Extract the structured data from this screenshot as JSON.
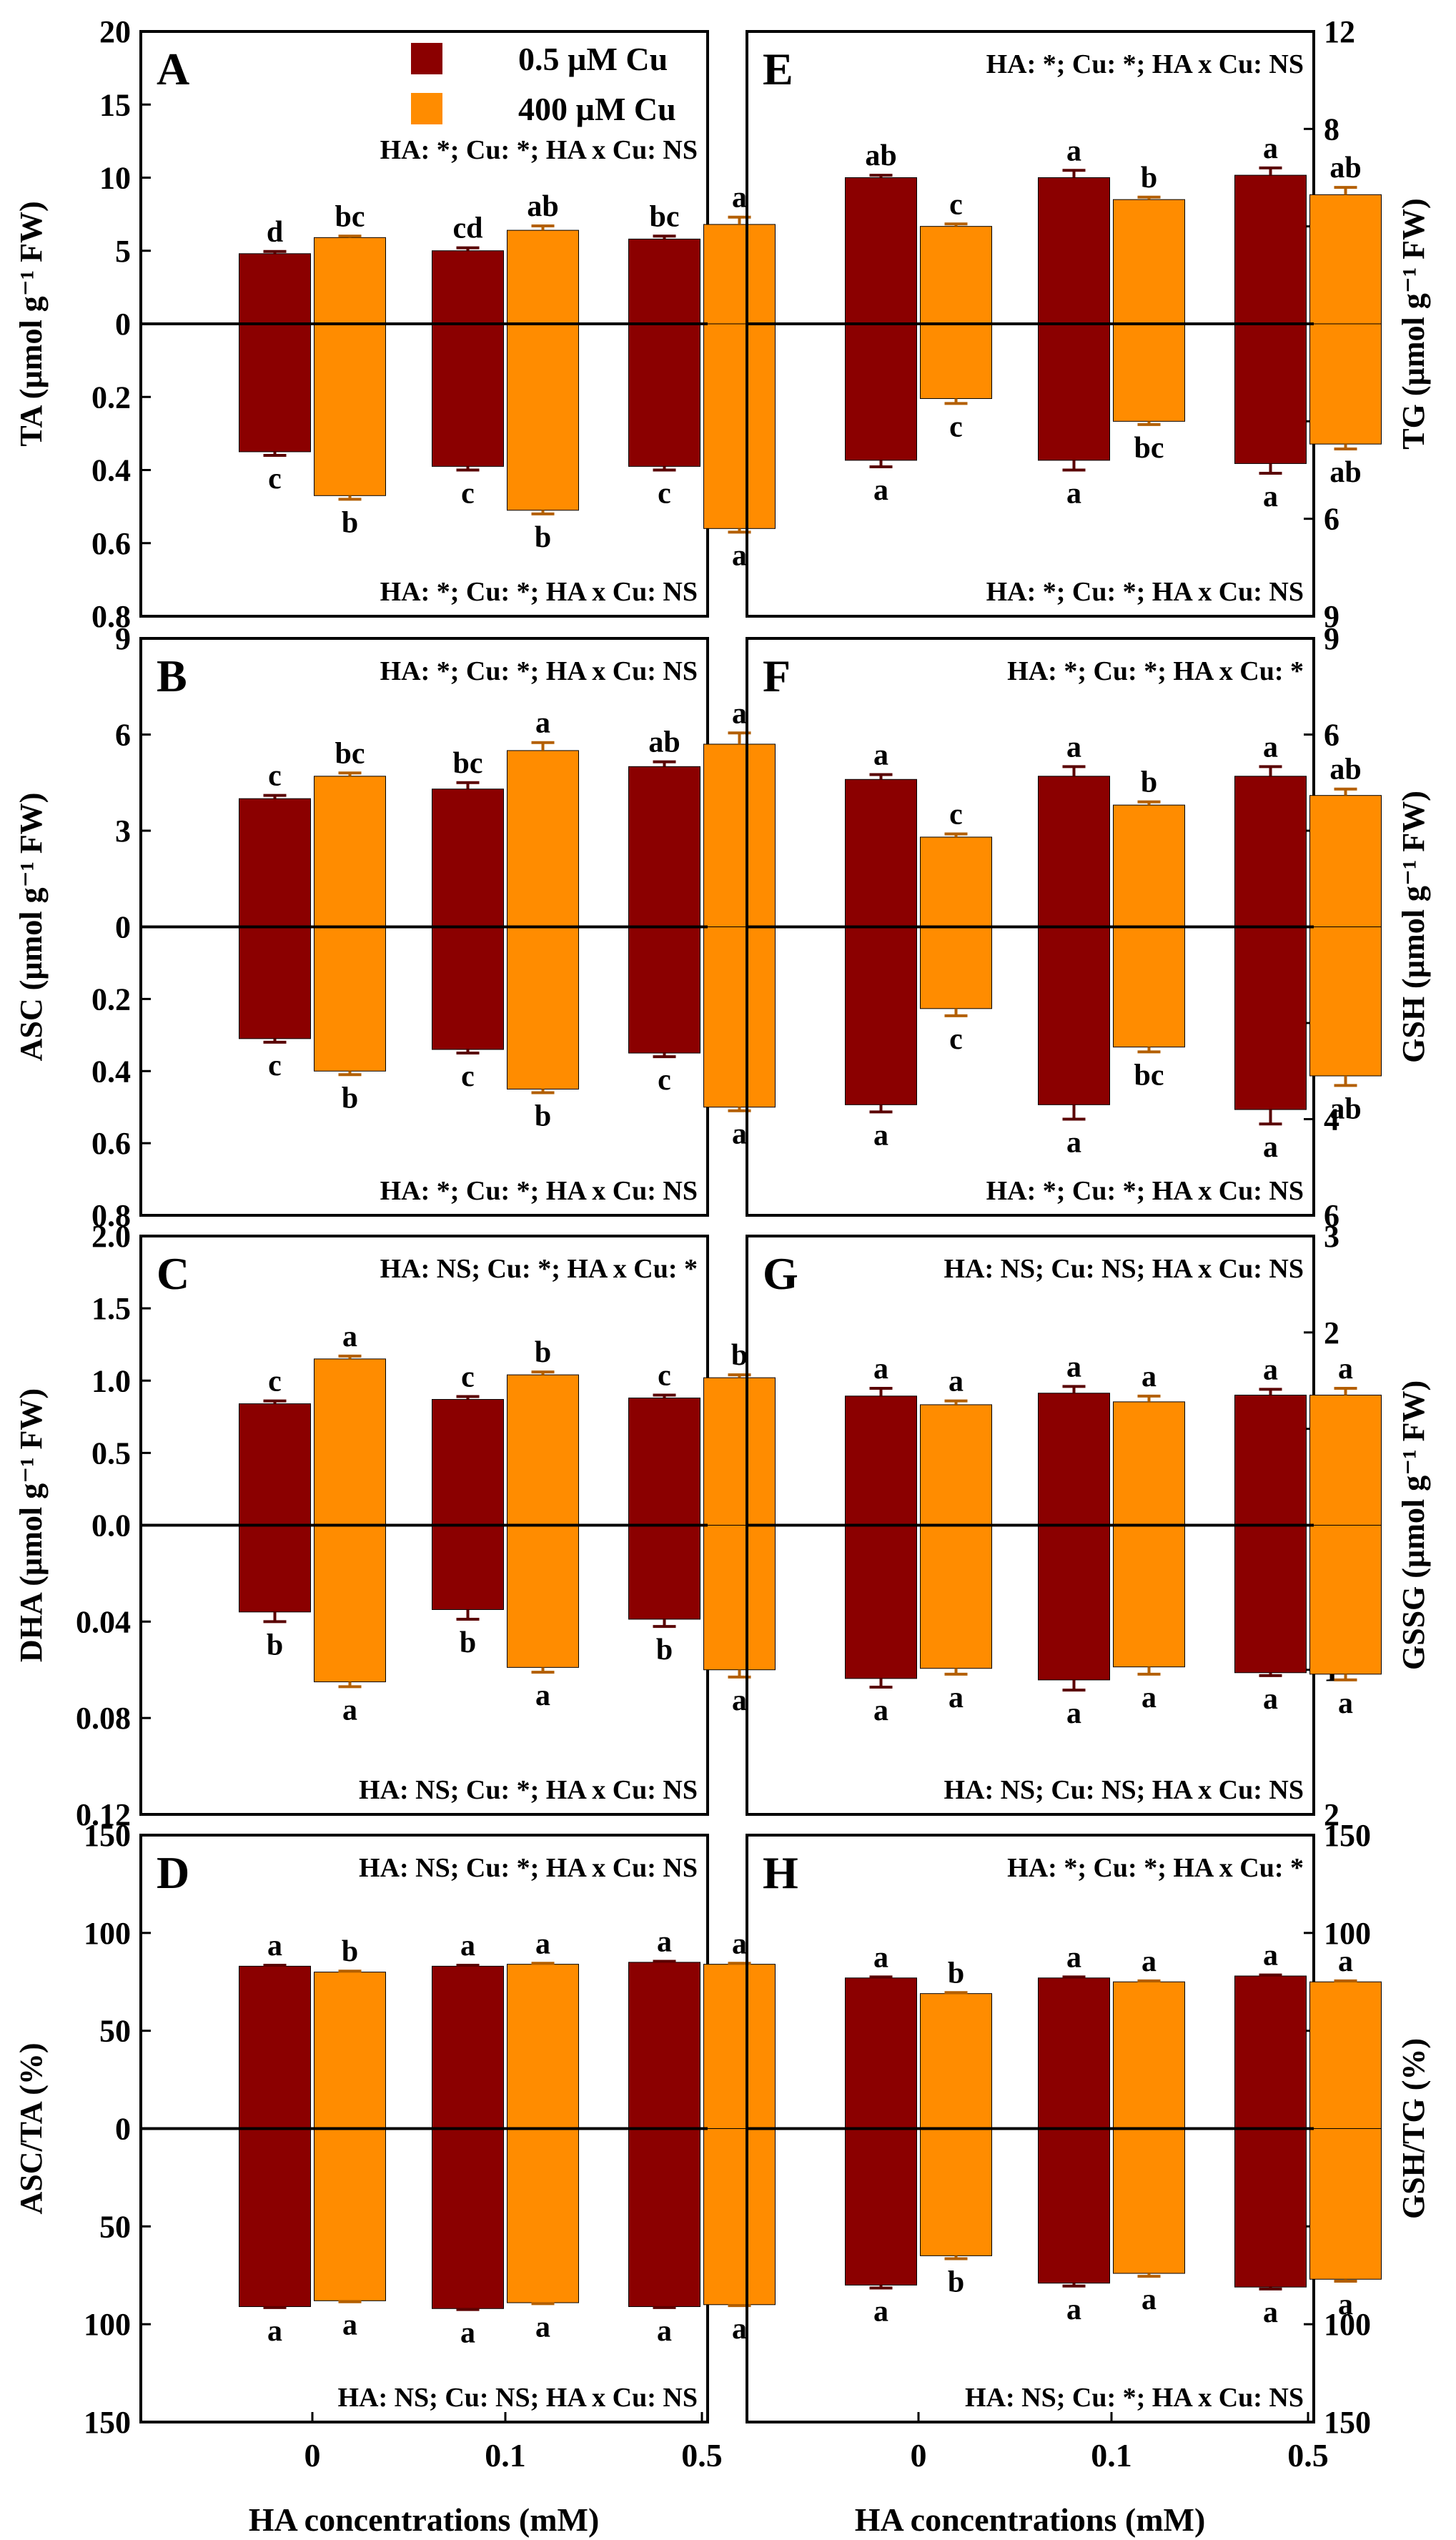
{
  "figure": {
    "xlabel": "HA concentrations (mM)",
    "categories": [
      "0",
      "0.1",
      "0.5"
    ],
    "legend": [
      {
        "label": "0.5 µM Cu",
        "color": "#8b0000"
      },
      {
        "label": "400 µM Cu",
        "color": "#ff8c00"
      }
    ]
  },
  "chart_data": [
    {
      "id": "A",
      "type": "bar",
      "panel_label": "A",
      "ylabel": "TA (µmol g⁻¹ FW)",
      "top": {
        "ylim": [
          0,
          20
        ],
        "ticks": [
          0,
          5,
          10,
          15,
          20
        ],
        "stats": "HA: *; Cu: *; HA x Cu: NS",
        "series": [
          {
            "name": "0.5 µM Cu",
            "values": [
              4.8,
              5.0,
              5.8
            ],
            "errors": [
              0.15,
              0.2,
              0.2
            ],
            "letters": [
              "d",
              "cd",
              "bc"
            ]
          },
          {
            "name": "400 µM Cu",
            "values": [
              5.9,
              6.4,
              6.8
            ],
            "errors": [
              0.1,
              0.3,
              0.5
            ],
            "letters": [
              "bc",
              "ab",
              "a"
            ]
          }
        ]
      },
      "bottom": {
        "ylim": [
          0,
          0.8
        ],
        "ticks": [
          0,
          0.2,
          0.4,
          0.6,
          0.8
        ],
        "tick_labels": [
          "0",
          "0.2",
          "0.4",
          "0.6",
          "0.8"
        ],
        "stats": "HA: *; Cu: *; HA x Cu: NS",
        "series": [
          {
            "name": "0.5 µM Cu",
            "values": [
              0.35,
              0.39,
              0.39
            ],
            "errors": [
              0.01,
              0.01,
              0.01
            ],
            "letters": [
              "c",
              "c",
              "c"
            ]
          },
          {
            "name": "400 µM Cu",
            "values": [
              0.47,
              0.51,
              0.56
            ],
            "errors": [
              0.01,
              0.01,
              0.01
            ],
            "letters": [
              "b",
              "b",
              "a"
            ]
          }
        ]
      }
    },
    {
      "id": "B",
      "type": "bar",
      "panel_label": "B",
      "ylabel": "ASC (µmol g⁻¹ FW)",
      "top": {
        "ylim": [
          0,
          9
        ],
        "ticks": [
          0,
          3,
          6,
          9
        ],
        "stats": "HA: *; Cu: *; HA x Cu: NS",
        "series": [
          {
            "name": "0.5 µM Cu",
            "values": [
              4.0,
              4.3,
              5.0
            ],
            "errors": [
              0.1,
              0.2,
              0.15
            ],
            "letters": [
              "c",
              "bc",
              "ab"
            ]
          },
          {
            "name": "400 µM Cu",
            "values": [
              4.7,
              5.5,
              5.7
            ],
            "errors": [
              0.1,
              0.25,
              0.35
            ],
            "letters": [
              "bc",
              "a",
              "a"
            ]
          }
        ]
      },
      "bottom": {
        "ylim": [
          0,
          0.8
        ],
        "ticks": [
          0,
          0.2,
          0.4,
          0.6,
          0.8
        ],
        "tick_labels": [
          "0",
          "0.2",
          "0.4",
          "0.6",
          "0.8"
        ],
        "stats": "HA: *; Cu: *; HA x Cu: NS",
        "series": [
          {
            "name": "0.5 µM Cu",
            "values": [
              0.31,
              0.34,
              0.35
            ],
            "errors": [
              0.01,
              0.01,
              0.01
            ],
            "letters": [
              "c",
              "c",
              "c"
            ]
          },
          {
            "name": "400 µM Cu",
            "values": [
              0.4,
              0.45,
              0.5
            ],
            "errors": [
              0.01,
              0.01,
              0.01
            ],
            "letters": [
              "b",
              "b",
              "a"
            ]
          }
        ]
      }
    },
    {
      "id": "C",
      "type": "bar",
      "panel_label": "C",
      "ylabel": "DHA (µmol g⁻¹ FW)",
      "top": {
        "ylim": [
          0,
          2.0
        ],
        "ticks": [
          0,
          0.5,
          1.0,
          1.5,
          2.0
        ],
        "tick_labels": [
          "0.0",
          "0.5",
          "1.0",
          "1.5",
          "2.0"
        ],
        "stats": "HA: NS; Cu: *; HA x Cu: *",
        "series": [
          {
            "name": "0.5 µM Cu",
            "values": [
              0.84,
              0.87,
              0.88
            ],
            "errors": [
              0.02,
              0.02,
              0.02
            ],
            "letters": [
              "c",
              "c",
              "c"
            ]
          },
          {
            "name": "400 µM Cu",
            "values": [
              1.15,
              1.04,
              1.02
            ],
            "errors": [
              0.02,
              0.02,
              0.02
            ],
            "letters": [
              "a",
              "b",
              "b"
            ]
          }
        ]
      },
      "bottom": {
        "ylim": [
          0,
          0.12
        ],
        "ticks": [
          0,
          0.04,
          0.08,
          0.12
        ],
        "tick_labels": [
          "",
          "0.04",
          "0.08",
          "0.12"
        ],
        "stats": "HA: NS; Cu: *; HA x Cu: NS",
        "series": [
          {
            "name": "0.5 µM Cu",
            "values": [
              0.036,
              0.035,
              0.039
            ],
            "errors": [
              0.004,
              0.004,
              0.003
            ],
            "letters": [
              "b",
              "b",
              "b"
            ]
          },
          {
            "name": "400 µM Cu",
            "values": [
              0.065,
              0.059,
              0.06
            ],
            "errors": [
              0.002,
              0.002,
              0.003
            ],
            "letters": [
              "a",
              "a",
              "a"
            ]
          }
        ]
      }
    },
    {
      "id": "D",
      "type": "bar",
      "panel_label": "D",
      "ylabel": "ASC/TA (%)",
      "top": {
        "ylim": [
          0,
          150
        ],
        "ticks": [
          0,
          50,
          100,
          150
        ],
        "stats": "HA: NS; Cu: *; HA x Cu: NS",
        "series": [
          {
            "name": "0.5 µM Cu",
            "values": [
              83,
              83,
              85
            ],
            "errors": [
              0.5,
              0.5,
              0.5
            ],
            "letters": [
              "a",
              "a",
              "a"
            ]
          },
          {
            "name": "400 µM Cu",
            "values": [
              80,
              84,
              84
            ],
            "errors": [
              0.5,
              0.5,
              0.5
            ],
            "letters": [
              "b",
              "a",
              "a"
            ]
          }
        ]
      },
      "bottom": {
        "ylim": [
          0,
          150
        ],
        "ticks": [
          0,
          50,
          100,
          150
        ],
        "stats": "HA: NS; Cu: NS; HA x Cu: NS",
        "series": [
          {
            "name": "0.5 µM Cu",
            "values": [
              91,
              92,
              91
            ],
            "errors": [
              0.5,
              0.5,
              0.5
            ],
            "letters": [
              "a",
              "a",
              "a"
            ]
          },
          {
            "name": "400 µM Cu",
            "values": [
              88,
              89,
              90
            ],
            "errors": [
              0.5,
              0.5,
              0.5
            ],
            "letters": [
              "a",
              "a",
              "a"
            ]
          }
        ]
      }
    },
    {
      "id": "E",
      "type": "bar",
      "panel_label": "E",
      "ylabel": "TG (µmol g⁻¹ FW)",
      "top": {
        "ylim": [
          0,
          12
        ],
        "ticks": [
          0,
          4,
          8,
          12
        ],
        "stats": "HA: *; Cu: *; HA x Cu: NS",
        "series": [
          {
            "name": "0.5 µM Cu",
            "values": [
              6.0,
              6.0,
              6.1
            ],
            "errors": [
              0.1,
              0.3,
              0.3
            ],
            "letters": [
              "ab",
              "a",
              "a"
            ]
          },
          {
            "name": "400 µM Cu",
            "values": [
              4.0,
              5.1,
              5.3
            ],
            "errors": [
              0.1,
              0.1,
              0.3
            ],
            "letters": [
              "c",
              "b",
              "ab"
            ]
          }
        ]
      },
      "bottom": {
        "ylim": [
          0,
          9
        ],
        "ticks": [
          0,
          3,
          6,
          9
        ],
        "stats": "HA: *; Cu: *; HA x Cu: NS",
        "series": [
          {
            "name": "0.5 µM Cu",
            "values": [
              4.2,
              4.2,
              4.3
            ],
            "errors": [
              0.2,
              0.3,
              0.3
            ],
            "letters": [
              "a",
              "a",
              "a"
            ]
          },
          {
            "name": "400 µM Cu",
            "values": [
              2.3,
              3.0,
              3.7
            ],
            "errors": [
              0.15,
              0.1,
              0.15
            ],
            "letters": [
              "c",
              "bc",
              "ab"
            ]
          }
        ]
      }
    },
    {
      "id": "F",
      "type": "bar",
      "panel_label": "F",
      "ylabel": "GSH (µmol g⁻¹ FW)",
      "top": {
        "ylim": [
          0,
          9
        ],
        "ticks": [
          0,
          3,
          6,
          9
        ],
        "stats": "HA: *; Cu: *; HA x Cu: *",
        "series": [
          {
            "name": "0.5 µM Cu",
            "values": [
              4.6,
              4.7,
              4.7
            ],
            "errors": [
              0.15,
              0.3,
              0.3
            ],
            "letters": [
              "a",
              "a",
              "a"
            ]
          },
          {
            "name": "400 µM Cu",
            "values": [
              2.8,
              3.8,
              4.1
            ],
            "errors": [
              0.1,
              0.1,
              0.2
            ],
            "letters": [
              "c",
              "b",
              "ab"
            ]
          }
        ]
      },
      "bottom": {
        "ylim": [
          0,
          6
        ],
        "ticks": [
          0,
          2,
          4,
          6
        ],
        "stats": "HA: *; Cu: *; HA x Cu: NS",
        "series": [
          {
            "name": "0.5 µM Cu",
            "values": [
              3.7,
              3.7,
              3.8
            ],
            "errors": [
              0.15,
              0.3,
              0.3
            ],
            "letters": [
              "a",
              "a",
              "a"
            ]
          },
          {
            "name": "400 µM Cu",
            "values": [
              1.7,
              2.5,
              3.1
            ],
            "errors": [
              0.15,
              0.1,
              0.2
            ],
            "letters": [
              "c",
              "bc",
              "ab"
            ]
          }
        ]
      }
    },
    {
      "id": "G",
      "type": "bar",
      "panel_label": "G",
      "ylabel": "GSSG (µmol g⁻¹ FW)",
      "top": {
        "ylim": [
          0,
          3
        ],
        "ticks": [
          0,
          1,
          2,
          3
        ],
        "stats": "HA: NS; Cu: NS; HA x Cu: NS",
        "series": [
          {
            "name": "0.5 µM Cu",
            "values": [
              1.34,
              1.37,
              1.35
            ],
            "errors": [
              0.08,
              0.07,
              0.06
            ],
            "letters": [
              "a",
              "a",
              "a"
            ]
          },
          {
            "name": "400 µM Cu",
            "values": [
              1.25,
              1.28,
              1.35
            ],
            "errors": [
              0.04,
              0.06,
              0.07
            ],
            "letters": [
              "a",
              "a",
              "a"
            ]
          }
        ]
      },
      "bottom": {
        "ylim": [
          0,
          2
        ],
        "ticks": [
          0,
          1,
          2
        ],
        "stats": "HA: NS; Cu: NS; HA x Cu: NS",
        "series": [
          {
            "name": "0.5 µM Cu",
            "values": [
              1.06,
              1.07,
              1.02
            ],
            "errors": [
              0.06,
              0.07,
              0.02
            ],
            "letters": [
              "a",
              "a",
              "a"
            ]
          },
          {
            "name": "400 µM Cu",
            "values": [
              0.99,
              0.98,
              1.03
            ],
            "errors": [
              0.04,
              0.05,
              0.04
            ],
            "letters": [
              "a",
              "a",
              "a"
            ]
          }
        ]
      }
    },
    {
      "id": "H",
      "type": "bar",
      "panel_label": "H",
      "ylabel": "GSH/TG (%)",
      "top": {
        "ylim": [
          0,
          150
        ],
        "ticks": [
          0,
          50,
          100,
          150
        ],
        "stats": "HA: *; Cu: *; HA x Cu: *",
        "series": [
          {
            "name": "0.5 µM Cu",
            "values": [
              77,
              77,
              78
            ],
            "errors": [
              0.5,
              0.5,
              0.5
            ],
            "letters": [
              "a",
              "a",
              "a"
            ]
          },
          {
            "name": "400 µM Cu",
            "values": [
              69,
              75,
              75
            ],
            "errors": [
              0.5,
              0.5,
              0.5
            ],
            "letters": [
              "b",
              "a",
              "a"
            ]
          }
        ]
      },
      "bottom": {
        "ylim": [
          0,
          150
        ],
        "ticks": [
          0,
          50,
          100,
          150
        ],
        "stats": "HA: NS; Cu: *; HA x Cu: NS",
        "series": [
          {
            "name": "0.5 µM Cu",
            "values": [
              80,
              79,
              81
            ],
            "errors": [
              1.5,
              1.5,
              1
            ],
            "letters": [
              "a",
              "a",
              "a"
            ]
          },
          {
            "name": "400 µM Cu",
            "values": [
              65,
              74,
              77
            ],
            "errors": [
              1.5,
              1.5,
              1
            ],
            "letters": [
              "b",
              "a",
              "a"
            ]
          }
        ]
      }
    }
  ]
}
